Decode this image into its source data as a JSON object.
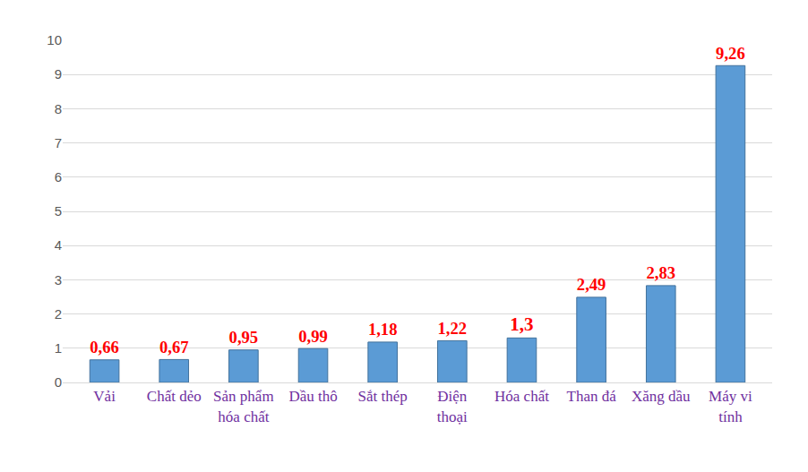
{
  "chart_data": {
    "type": "bar",
    "categories": [
      "Vải",
      "Chất dẻo",
      "Sản phẩm hóa chất",
      "Dầu thô",
      "Sắt thép",
      "Điện thoại",
      "Hóa chất",
      "Than đá",
      "Xăng dầu",
      "Máy vi tính"
    ],
    "values": [
      0.66,
      0.67,
      0.95,
      0.99,
      1.18,
      1.22,
      1.3,
      2.49,
      2.83,
      9.26
    ],
    "value_labels": [
      "0,66",
      "0,67",
      "0,95",
      "0,99",
      "1,18",
      "1,22",
      "1,3",
      "2,49",
      "2,83",
      "9,26"
    ],
    "color": "#5b9bd5",
    "ylim": [
      0,
      10
    ],
    "yticks": [
      0,
      1,
      2,
      3,
      4,
      5,
      6,
      7,
      8,
      9,
      10
    ],
    "grid": true,
    "data_labels": true
  }
}
